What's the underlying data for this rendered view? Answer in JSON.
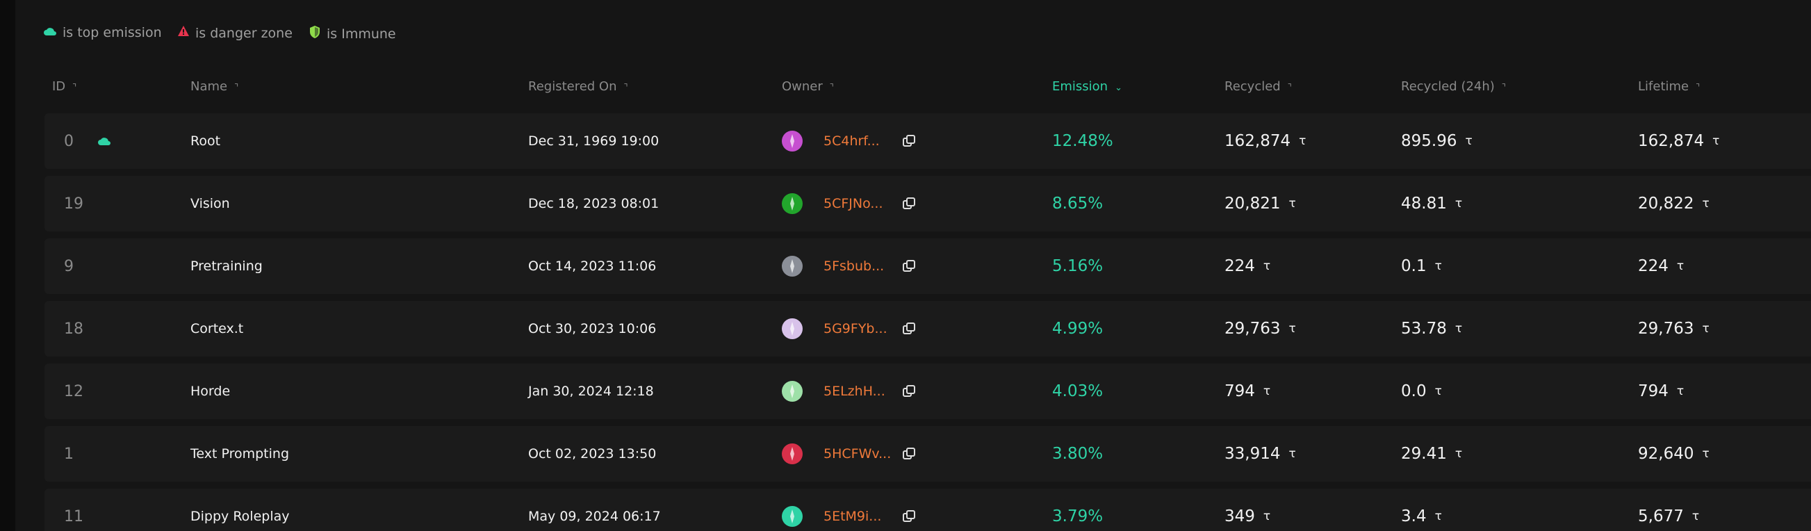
{
  "legend": [
    {
      "label": "is top emission"
    },
    {
      "label": "is danger zone"
    },
    {
      "label": "is Immune"
    }
  ],
  "table": {
    "headers": [
      "ID",
      "Name",
      "Registered On",
      "Owner",
      "Emission",
      "Recycled",
      "Recycled (24h)",
      "Lifetime"
    ],
    "unit": "τ",
    "rows": [
      [
        0,
        "Root",
        "Dec 31, 1969 19:00",
        "5C4hrf...",
        "12.48%",
        "162,874",
        "895.96",
        "162,874"
      ],
      [
        19,
        "Vision",
        "Dec 18, 2023 08:01",
        "5CFJNo...",
        "8.65%",
        "20,821",
        "48.81",
        "20,822"
      ],
      [
        9,
        "Pretraining",
        "Oct 14, 2023 11:06",
        "5Fsbub...",
        "5.16%",
        "224",
        "0.1",
        "224"
      ],
      [
        18,
        "Cortex.t",
        "Oct 30, 2023 10:06",
        "5G9FYb...",
        "4.99%",
        "29,763",
        "53.78",
        "29,763"
      ],
      [
        12,
        "Horde",
        "Jan 30, 2024 12:18",
        "5ELzhH...",
        "4.03%",
        "794",
        "0.0",
        "794"
      ],
      [
        1,
        "Text Prompting",
        "Oct 02, 2023 13:50",
        "5HCFWv...",
        "3.80%",
        "33,914",
        "29.41",
        "92,640"
      ],
      [
        11,
        "Dippy Roleplay",
        "May 09, 2024 06:17",
        "5EtM9i...",
        "3.79%",
        "349",
        "3.4",
        "5,677"
      ]
    ]
  }
}
